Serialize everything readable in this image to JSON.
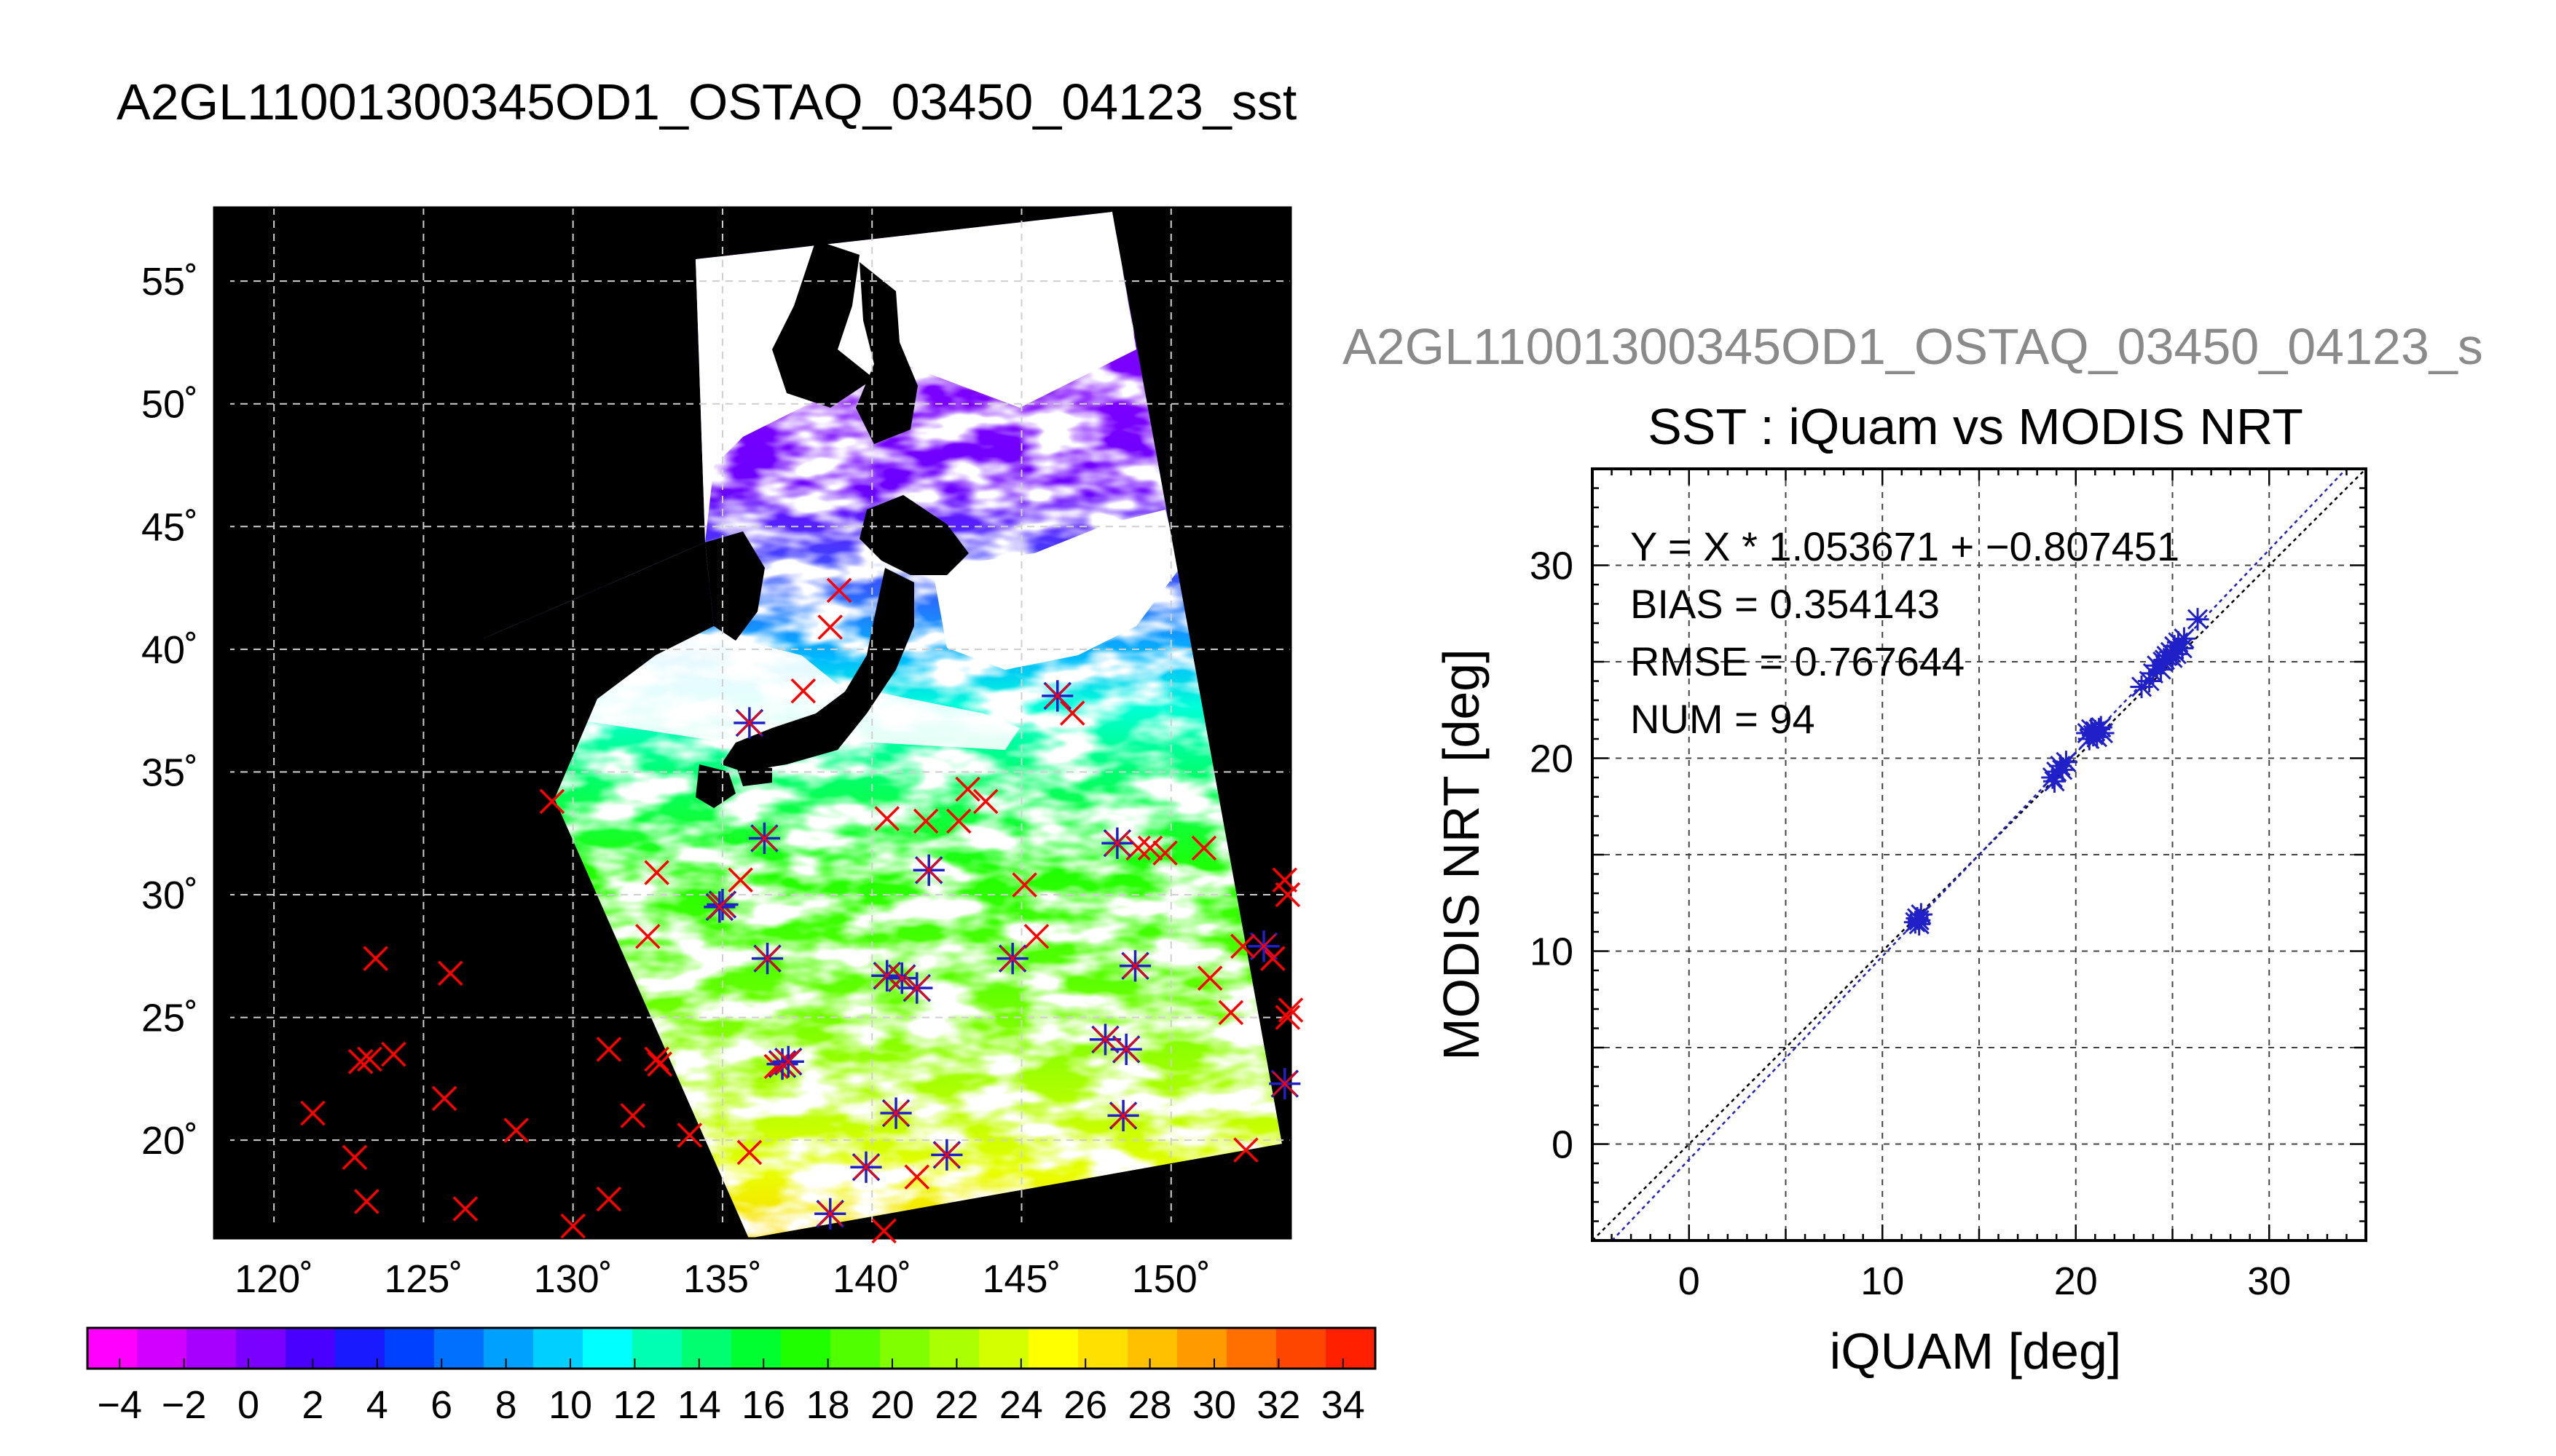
{
  "title": "A2GL11001300345OD1_OSTAQ_03450_04123_sst",
  "map": {
    "lon_range": [
      118,
      154
    ],
    "lat_range": [
      16,
      58
    ],
    "lon_ticks": [
      120,
      125,
      130,
      135,
      140,
      145,
      150
    ],
    "lat_ticks": [
      20,
      25,
      30,
      35,
      40,
      45,
      50,
      55
    ],
    "lon_tick_labels": [
      "120˚",
      "125˚",
      "130˚",
      "135˚",
      "140˚",
      "145˚",
      "150˚"
    ],
    "lat_tick_labels": [
      "20˚",
      "25˚",
      "30˚",
      "35˚",
      "40˚",
      "45˚",
      "50˚",
      "55˚"
    ],
    "background_color": "#000000",
    "marker_colors": {
      "no_match": "#ff0000",
      "match": "#2020c8"
    },
    "markers_no_match": [
      [
        121.3,
        21.1
      ],
      [
        122.7,
        19.3
      ],
      [
        123.1,
        17.5
      ],
      [
        122.9,
        23.2
      ],
      [
        123.2,
        23.3
      ],
      [
        123.4,
        27.4
      ],
      [
        124.0,
        23.5
      ],
      [
        125.7,
        21.7
      ],
      [
        125.9,
        26.8
      ],
      [
        126.4,
        17.2
      ],
      [
        128.1,
        20.4
      ],
      [
        129.3,
        33.8
      ],
      [
        130.0,
        16.5
      ],
      [
        131.2,
        17.6
      ],
      [
        131.2,
        23.7
      ],
      [
        132.0,
        21.0
      ],
      [
        132.5,
        28.3
      ],
      [
        132.8,
        23.3
      ],
      [
        132.9,
        23.1
      ],
      [
        132.8,
        30.9
      ],
      [
        133.9,
        20.2
      ],
      [
        135.6,
        30.6
      ],
      [
        135.9,
        19.5
      ],
      [
        137.7,
        38.3
      ],
      [
        138.9,
        42.4
      ],
      [
        138.6,
        40.9
      ],
      [
        140.5,
        33.1
      ],
      [
        141.5,
        18.5
      ],
      [
        141.8,
        33.0
      ],
      [
        142.9,
        33.0
      ],
      [
        143.2,
        34.3
      ],
      [
        143.8,
        33.8
      ],
      [
        145.1,
        30.4
      ],
      [
        145.5,
        28.3
      ],
      [
        146.7,
        37.4
      ],
      [
        148.9,
        31.9
      ],
      [
        149.3,
        31.9
      ],
      [
        149.8,
        31.7
      ],
      [
        151.1,
        31.9
      ],
      [
        151.3,
        26.6
      ],
      [
        152.0,
        25.2
      ],
      [
        152.4,
        27.9
      ],
      [
        152.5,
        19.6
      ],
      [
        153.4,
        27.4
      ],
      [
        153.8,
        30.6
      ],
      [
        153.9,
        30.0
      ],
      [
        153.9,
        25.0
      ],
      [
        154.0,
        25.3
      ],
      [
        140.4,
        16.3
      ],
      [
        136.8,
        23.0
      ]
    ],
    "markers_match": [
      [
        135.9,
        37.0
      ],
      [
        135.0,
        29.6
      ],
      [
        134.9,
        29.5
      ],
      [
        136.4,
        32.3
      ],
      [
        136.5,
        27.4
      ],
      [
        137.0,
        23.1
      ],
      [
        137.2,
        23.2
      ],
      [
        138.6,
        17.0
      ],
      [
        139.8,
        18.9
      ],
      [
        140.5,
        26.7
      ],
      [
        140.8,
        21.1
      ],
      [
        141.0,
        26.6
      ],
      [
        141.5,
        26.2
      ],
      [
        141.9,
        31.0
      ],
      [
        142.5,
        19.4
      ],
      [
        144.7,
        27.4
      ],
      [
        146.2,
        38.1
      ],
      [
        147.8,
        24.1
      ],
      [
        148.2,
        32.1
      ],
      [
        148.4,
        21.0
      ],
      [
        148.5,
        23.7
      ],
      [
        148.8,
        27.1
      ],
      [
        153.1,
        27.9
      ],
      [
        153.8,
        22.3
      ]
    ]
  },
  "colorbar": {
    "min": -5,
    "max": 35,
    "tick_values": [
      -4,
      -2,
      0,
      2,
      4,
      6,
      8,
      10,
      12,
      14,
      16,
      18,
      20,
      22,
      24,
      26,
      28,
      30,
      32,
      34
    ],
    "tick_labels": [
      "−4",
      "−2",
      "0",
      "2",
      "4",
      "6",
      "8",
      "10",
      "12",
      "14",
      "16",
      "18",
      "20",
      "22",
      "24",
      "26",
      "28",
      "30",
      "32",
      "34"
    ],
    "colors": [
      "#ff00ff",
      "#d200ff",
      "#a800ff",
      "#7a00ff",
      "#4a00ff",
      "#1a1aff",
      "#0040ff",
      "#0070ff",
      "#00a0ff",
      "#00cfff",
      "#00ffff",
      "#00ffb0",
      "#00ff70",
      "#00ff30",
      "#20ff00",
      "#50ff00",
      "#80ff00",
      "#aaff00",
      "#d4ff00",
      "#ffff00",
      "#ffe000",
      "#ffc000",
      "#ff9a00",
      "#ff7000",
      "#ff4600",
      "#ff2000"
    ]
  },
  "chart_data": {
    "type": "scatter",
    "overtitle": "A2GL11001300345OD1_OSTAQ_03450_04123_s",
    "title": "SST : iQuam vs MODIS NRT",
    "xlabel": "iQUAM [deg]",
    "ylabel": "MODIS NRT [deg]",
    "xlim": [
      -5,
      35
    ],
    "ylim": [
      -5,
      35
    ],
    "x_ticks": [
      0,
      10,
      20,
      30
    ],
    "y_ticks": [
      0,
      10,
      20,
      30
    ],
    "x_tick_labels": [
      "0",
      "10",
      "20",
      "30"
    ],
    "y_tick_labels": [
      "0",
      "10",
      "20",
      "30"
    ],
    "grid": true,
    "annotations": [
      "Y = X * 1.053671 + −0.807451",
      "BIAS = 0.354143",
      "RMSE = 0.767644",
      "NUM = 94"
    ],
    "regression": {
      "slope": 1.053671,
      "intercept": -0.807451,
      "color": "#2020c8"
    },
    "identity_line_color": "#000000",
    "marker_color": "#2020c8",
    "points": [
      [
        11.8,
        11.7
      ],
      [
        11.9,
        11.4
      ],
      [
        12.0,
        11.9
      ],
      [
        11.7,
        11.5
      ],
      [
        11.9,
        11.6
      ],
      [
        18.8,
        19.0
      ],
      [
        19.0,
        19.3
      ],
      [
        19.2,
        19.6
      ],
      [
        19.5,
        19.8
      ],
      [
        18.9,
        18.8
      ],
      [
        19.3,
        19.4
      ],
      [
        20.6,
        21.3
      ],
      [
        20.8,
        21.5
      ],
      [
        20.9,
        21.2
      ],
      [
        21.0,
        21.4
      ],
      [
        21.1,
        21.1
      ],
      [
        21.2,
        21.5
      ],
      [
        21.4,
        21.3
      ],
      [
        20.7,
        21.0
      ],
      [
        21.3,
        21.6
      ],
      [
        23.4,
        23.7
      ],
      [
        23.8,
        24.0
      ],
      [
        24.0,
        24.4
      ],
      [
        24.2,
        24.8
      ],
      [
        24.4,
        24.6
      ],
      [
        24.5,
        25.0
      ],
      [
        24.7,
        25.3
      ],
      [
        24.9,
        25.5
      ],
      [
        25.0,
        25.2
      ],
      [
        25.1,
        25.8
      ],
      [
        25.3,
        26.0
      ],
      [
        25.5,
        25.7
      ],
      [
        25.6,
        26.2
      ],
      [
        26.3,
        27.2
      ],
      [
        24.6,
        25.1
      ],
      [
        25.2,
        25.4
      ]
    ]
  }
}
